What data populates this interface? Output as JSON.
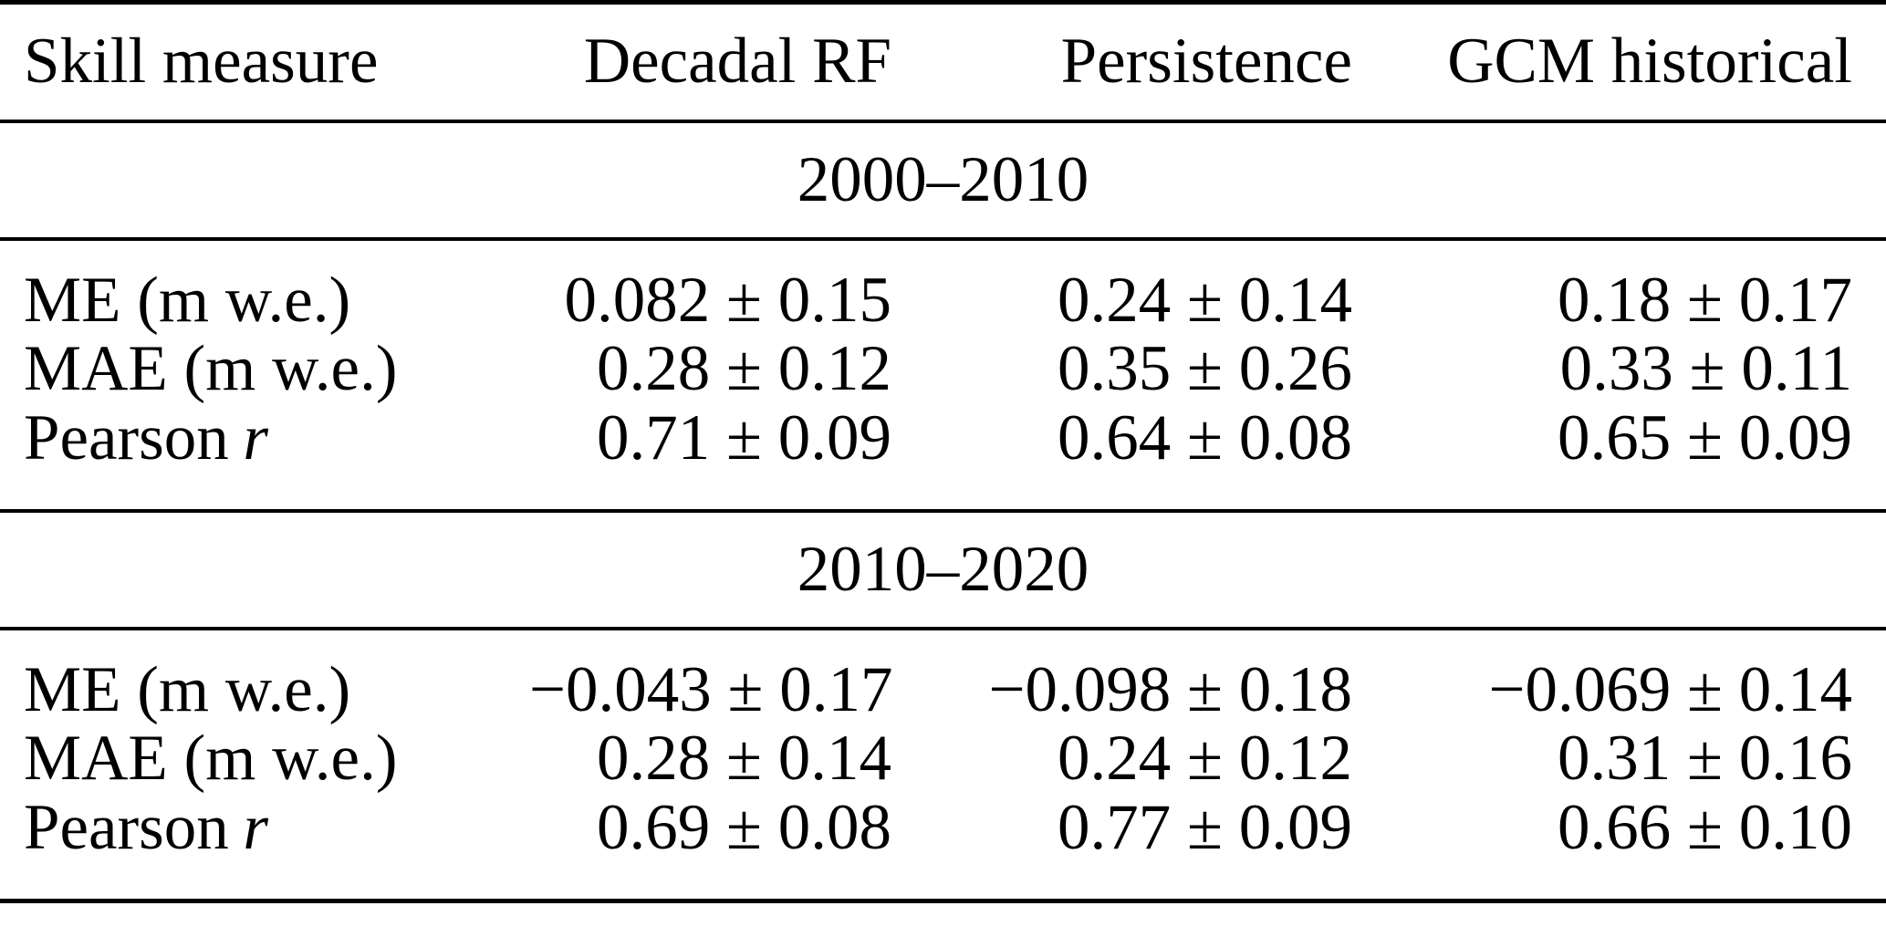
{
  "table": {
    "columns": [
      "Skill measure",
      "Decadal RF",
      "Persistence",
      "GCM historical"
    ],
    "sections": [
      {
        "title": "2000–2010",
        "rows": [
          {
            "label": "ME (m w.e.)",
            "label_italic": "",
            "values": [
              "0.082 ± 0.15",
              "0.24 ± 0.14",
              "0.18 ± 0.17"
            ]
          },
          {
            "label": "MAE (m w.e.)",
            "label_italic": "",
            "values": [
              "0.28 ± 0.12",
              "0.35 ± 0.26",
              "0.33 ± 0.11"
            ]
          },
          {
            "label": "Pearson",
            "label_italic": "r",
            "values": [
              "0.71 ± 0.09",
              "0.64 ± 0.08",
              "0.65 ± 0.09"
            ]
          }
        ]
      },
      {
        "title": "2010–2020",
        "rows": [
          {
            "label": "ME (m w.e.)",
            "label_italic": "",
            "values": [
              "−0.043 ± 0.17",
              "−0.098 ± 0.18",
              "−0.069 ± 0.14"
            ]
          },
          {
            "label": "MAE (m w.e.)",
            "label_italic": "",
            "values": [
              "0.28 ± 0.14",
              "0.24 ± 0.12",
              "0.31 ± 0.16"
            ]
          },
          {
            "label": "Pearson",
            "label_italic": "r",
            "values": [
              "0.69 ± 0.08",
              "0.77 ± 0.09",
              "0.66 ± 0.10"
            ]
          }
        ]
      }
    ]
  },
  "colors": {
    "text": "#000000",
    "rule": "#000000",
    "background": "#ffffff"
  }
}
